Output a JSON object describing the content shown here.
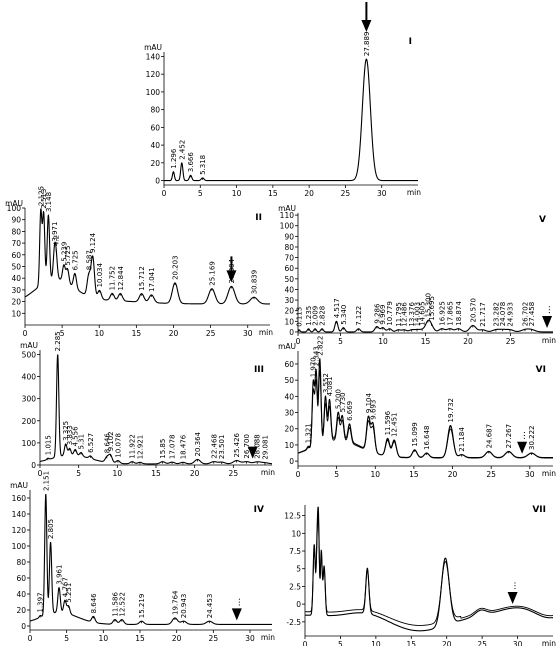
{
  "figure": {
    "panels": [
      "I",
      "II",
      "III",
      "IV",
      "V",
      "VI",
      "VII"
    ],
    "arrow_dots": "..."
  },
  "chart_data": [
    {
      "type": "line",
      "panel": "I",
      "unit": "mAU",
      "xunit": "min",
      "xlim": [
        0,
        35
      ],
      "ylim": [
        -5,
        145
      ],
      "xticks": [
        0,
        5,
        10,
        15,
        20,
        25,
        30
      ],
      "yticks": [
        0,
        20,
        40,
        60,
        80,
        100,
        120,
        140
      ],
      "arrow": {
        "at": 27.889,
        "style": "solid"
      },
      "peaks": [
        {
          "rt": 1.296,
          "h": 10,
          "label": "1.296"
        },
        {
          "rt": 2.452,
          "h": 20,
          "label": "2.452"
        },
        {
          "rt": 3.666,
          "h": 6,
          "label": "3.666"
        },
        {
          "rt": 5.318,
          "h": 3,
          "label": "5.318"
        },
        {
          "rt": 27.889,
          "h": 137,
          "label": "27.889"
        }
      ]
    },
    {
      "type": "line",
      "panel": "II",
      "unit": "mAU",
      "xunit": "min",
      "xlim": [
        0,
        33
      ],
      "ylim": [
        0,
        100
      ],
      "xticks": [
        0,
        5,
        10,
        15,
        20,
        25,
        30
      ],
      "yticks": [
        10,
        20,
        30,
        40,
        50,
        60,
        70,
        80,
        90,
        100
      ],
      "arrow": {
        "at": 27.804,
        "style": "solid"
      },
      "peaks": [
        {
          "rt": 2.125,
          "h": 97,
          "label": "2.125"
        },
        {
          "rt": 2.513,
          "h": 95,
          "label": "2.513"
        },
        {
          "rt": 3.148,
          "h": 94,
          "label": "3.148"
        },
        {
          "rt": 3.971,
          "h": 62,
          "label": "3.971"
        },
        {
          "rt": 4.2,
          "h": 55,
          "label": "4.2"
        },
        {
          "rt": 5.239,
          "h": 45,
          "label": "5.239"
        },
        {
          "rt": 5.725,
          "h": 40,
          "label": "5.725"
        },
        {
          "rt": 6.725,
          "h": 42,
          "label": "6.725"
        },
        {
          "rt": 8.587,
          "h": 42,
          "label": "8.587"
        },
        {
          "rt": 9.124,
          "h": 58,
          "label": "9.124"
        },
        {
          "rt": 10.034,
          "h": 25,
          "label": "10.034"
        },
        {
          "rt": 11.752,
          "h": 20,
          "label": "11.752"
        },
        {
          "rt": 12.844,
          "h": 21,
          "label": "12.844"
        },
        {
          "rt": 15.712,
          "h": 24,
          "label": "15.712"
        },
        {
          "rt": 17.041,
          "h": 22,
          "label": "17.041"
        },
        {
          "rt": 20.203,
          "h": 36,
          "label": "20.203"
        },
        {
          "rt": 25.169,
          "h": 31,
          "label": "25.169"
        },
        {
          "rt": 27.804,
          "h": 33,
          "label": "27.804"
        },
        {
          "rt": 30.839,
          "h": 19,
          "label": "30.839"
        }
      ]
    },
    {
      "type": "line",
      "panel": "III",
      "unit": "mAU",
      "xunit": "min",
      "xlim": [
        0,
        30
      ],
      "ylim": [
        0,
        520
      ],
      "xticks": [
        0,
        5,
        10,
        15,
        20,
        25
      ],
      "yticks": [
        0,
        100,
        200,
        300,
        400,
        500
      ],
      "arrow": {
        "at": 27.5,
        "style": "dotted"
      },
      "peaks": [
        {
          "rt": 1.015,
          "h": 20,
          "label": "1.015"
        },
        {
          "rt": 2.285,
          "h": 500,
          "label": "2.285"
        },
        {
          "rt": 3.325,
          "h": 95,
          "label": "3.325"
        },
        {
          "rt": 3.833,
          "h": 75,
          "label": "3.833"
        },
        {
          "rt": 4.556,
          "h": 70,
          "label": "4.556"
        },
        {
          "rt": 5.31,
          "h": 55,
          "label": "5.31"
        },
        {
          "rt": 6.527,
          "h": 40,
          "label": "6.527"
        },
        {
          "rt": 8.646,
          "h": 35,
          "label": "8.646"
        },
        {
          "rt": 9.102,
          "h": 45,
          "label": "9.102"
        },
        {
          "rt": 10.078,
          "h": 20,
          "label": "10.078"
        },
        {
          "rt": 11.922,
          "h": 15,
          "label": "11.922"
        },
        {
          "rt": 12.921,
          "h": 12,
          "label": "12.921"
        },
        {
          "rt": 15.85,
          "h": 15,
          "label": "15.85"
        },
        {
          "rt": 17.078,
          "h": 13,
          "label": "17.078"
        },
        {
          "rt": 18.476,
          "h": 12,
          "label": "18.476"
        },
        {
          "rt": 20.364,
          "h": 25,
          "label": "20.364"
        },
        {
          "rt": 22.468,
          "h": 15,
          "label": "22.468"
        },
        {
          "rt": 23.501,
          "h": 13,
          "label": "23.501"
        },
        {
          "rt": 25.426,
          "h": 20,
          "label": "25.426"
        },
        {
          "rt": 26.7,
          "h": 15,
          "label": "26.700"
        },
        {
          "rt": 28.088,
          "h": 14,
          "label": "28.088"
        },
        {
          "rt": 29.081,
          "h": 10,
          "label": "29.081"
        }
      ]
    },
    {
      "type": "line",
      "panel": "IV",
      "unit": "mAU",
      "xunit": "min",
      "xlim": [
        0,
        33
      ],
      "ylim": [
        -5,
        170
      ],
      "xticks": [
        0,
        5,
        10,
        15,
        20,
        25,
        30
      ],
      "yticks": [
        0,
        20,
        40,
        60,
        80,
        100,
        120,
        140,
        160
      ],
      "arrow": {
        "at": 28.2,
        "style": "dotted"
      },
      "peaks": [
        {
          "rt": 1.397,
          "h": 8,
          "label": "1.397"
        },
        {
          "rt": 2.151,
          "h": 165,
          "label": "2.151"
        },
        {
          "rt": 2.805,
          "h": 105,
          "label": "2.805"
        },
        {
          "rt": 3.961,
          "h": 48,
          "label": "3.961"
        },
        {
          "rt": 4.767,
          "h": 32,
          "label": "4.767"
        },
        {
          "rt": 5.251,
          "h": 25,
          "label": "5.251"
        },
        {
          "rt": 8.646,
          "h": 12,
          "label": "8.646"
        },
        {
          "rt": 11.586,
          "h": 8,
          "label": "11.586"
        },
        {
          "rt": 12.522,
          "h": 8,
          "label": "12.522"
        },
        {
          "rt": 15.219,
          "h": 6,
          "label": "15.219"
        },
        {
          "rt": 19.764,
          "h": 10,
          "label": "19.764"
        },
        {
          "rt": 20.943,
          "h": 6,
          "label": "20.943"
        },
        {
          "rt": 24.453,
          "h": 6,
          "label": "24.453"
        }
      ]
    },
    {
      "type": "line",
      "panel": "V",
      "unit": "mAU",
      "xunit": "min",
      "xlim": [
        0,
        30
      ],
      "ylim": [
        -1,
        112
      ],
      "xticks": [
        0,
        5,
        10,
        15,
        20,
        25
      ],
      "yticks": [
        0,
        10,
        20,
        30,
        40,
        50,
        60,
        70,
        80,
        90,
        100,
        110
      ],
      "arrow": {
        "at": 29.3,
        "style": "dotted"
      },
      "peaks": [
        {
          "rt": 0.113,
          "h": 2,
          "label": "0.113"
        },
        {
          "rt": 1.235,
          "h": 3,
          "label": "1.235"
        },
        {
          "rt": 2.009,
          "h": 3,
          "label": "2.009"
        },
        {
          "rt": 2.828,
          "h": 3,
          "label": "2.828"
        },
        {
          "rt": 4.517,
          "h": 10,
          "label": "4.517"
        },
        {
          "rt": 5.34,
          "h": 4,
          "label": "5.340"
        },
        {
          "rt": 7.122,
          "h": 3,
          "label": "7.122"
        },
        {
          "rt": 9.286,
          "h": 5,
          "label": "9.286"
        },
        {
          "rt": 9.969,
          "h": 4,
          "label": "9.969"
        },
        {
          "rt": 10.779,
          "h": 3,
          "label": "10.779"
        },
        {
          "rt": 11.795,
          "h": 2,
          "label": "11.795"
        },
        {
          "rt": 12.486,
          "h": 2,
          "label": "12.486"
        },
        {
          "rt": 13.376,
          "h": 2,
          "label": "13.376"
        },
        {
          "rt": 14.003,
          "h": 2,
          "label": "14.003"
        },
        {
          "rt": 14.605,
          "h": 2,
          "label": "14.605"
        },
        {
          "rt": 15.3,
          "h": 9,
          "label": "15.300"
        },
        {
          "rt": 15.695,
          "h": 4,
          "label": "15.695"
        },
        {
          "rt": 16.925,
          "h": 3,
          "label": "16.925"
        },
        {
          "rt": 17.865,
          "h": 3,
          "label": "17.865"
        },
        {
          "rt": 18.874,
          "h": 3,
          "label": "18.874"
        },
        {
          "rt": 20.57,
          "h": 6,
          "label": "20.570"
        },
        {
          "rt": 21.717,
          "h": 2,
          "label": "21.717"
        },
        {
          "rt": 23.282,
          "h": 2,
          "label": "23.282"
        },
        {
          "rt": 24.078,
          "h": 2,
          "label": "24.078"
        },
        {
          "rt": 24.933,
          "h": 2,
          "label": "24.933"
        },
        {
          "rt": 26.702,
          "h": 2,
          "label": "26.702"
        },
        {
          "rt": 27.458,
          "h": 2,
          "label": "27.458"
        }
      ]
    },
    {
      "type": "line",
      "panel": "VI",
      "unit": "mAU",
      "xunit": "min",
      "xlim": [
        0,
        33
      ],
      "ylim": [
        -3,
        68
      ],
      "xticks": [
        0,
        5,
        10,
        15,
        20,
        25,
        30
      ],
      "yticks": [
        0,
        10,
        20,
        30,
        40,
        50,
        60
      ],
      "arrow": {
        "at": 29.0,
        "style": "dotted"
      },
      "peaks": [
        {
          "rt": 1.321,
          "h": 5,
          "label": "1.321"
        },
        {
          "rt": 1.97,
          "h": 48,
          "label": "1.970"
        },
        {
          "rt": 2.343,
          "h": 55,
          "label": "2.343"
        },
        {
          "rt": 2.822,
          "h": 63,
          "label": "2.822"
        },
        {
          "rt": 3.552,
          "h": 40,
          "label": "3.552"
        },
        {
          "rt": 4.081,
          "h": 38,
          "label": "4.081"
        },
        {
          "rt": 5.2,
          "h": 30,
          "label": "5.200"
        },
        {
          "rt": 5.73,
          "h": 28,
          "label": "5.730"
        },
        {
          "rt": 6.669,
          "h": 23,
          "label": "6.669"
        },
        {
          "rt": 9.104,
          "h": 27,
          "label": "9.104"
        },
        {
          "rt": 9.693,
          "h": 23,
          "label": "9.693"
        },
        {
          "rt": 11.596,
          "h": 14,
          "label": "11.596"
        },
        {
          "rt": 12.451,
          "h": 13,
          "label": "12.451"
        },
        {
          "rt": 15.099,
          "h": 7,
          "label": "15.099"
        },
        {
          "rt": 16.648,
          "h": 5,
          "label": "16.648"
        },
        {
          "rt": 19.732,
          "h": 22,
          "label": "19.732"
        },
        {
          "rt": 21.184,
          "h": 4,
          "label": "21.184"
        },
        {
          "rt": 24.687,
          "h": 6,
          "label": "24.687"
        },
        {
          "rt": 27.267,
          "h": 6,
          "label": "27.267"
        },
        {
          "rt": 30.222,
          "h": 5,
          "label": "30.222"
        }
      ]
    },
    {
      "type": "line",
      "panel": "VII",
      "unit": "",
      "xunit": "min",
      "xlim": [
        0,
        35
      ],
      "ylim": [
        -4.5,
        14
      ],
      "xticks": [
        0,
        5,
        10,
        15,
        20,
        25,
        30
      ],
      "yticks": [
        -2.5,
        0,
        2.5,
        5,
        7.5,
        10,
        12.5
      ],
      "ytick_labels": [
        "-2.5",
        "0",
        "2.5",
        "5",
        "7.5",
        "10",
        "12.5"
      ],
      "arrow": {
        "at": 29.3,
        "style": "dotted"
      },
      "peaks": []
    }
  ]
}
